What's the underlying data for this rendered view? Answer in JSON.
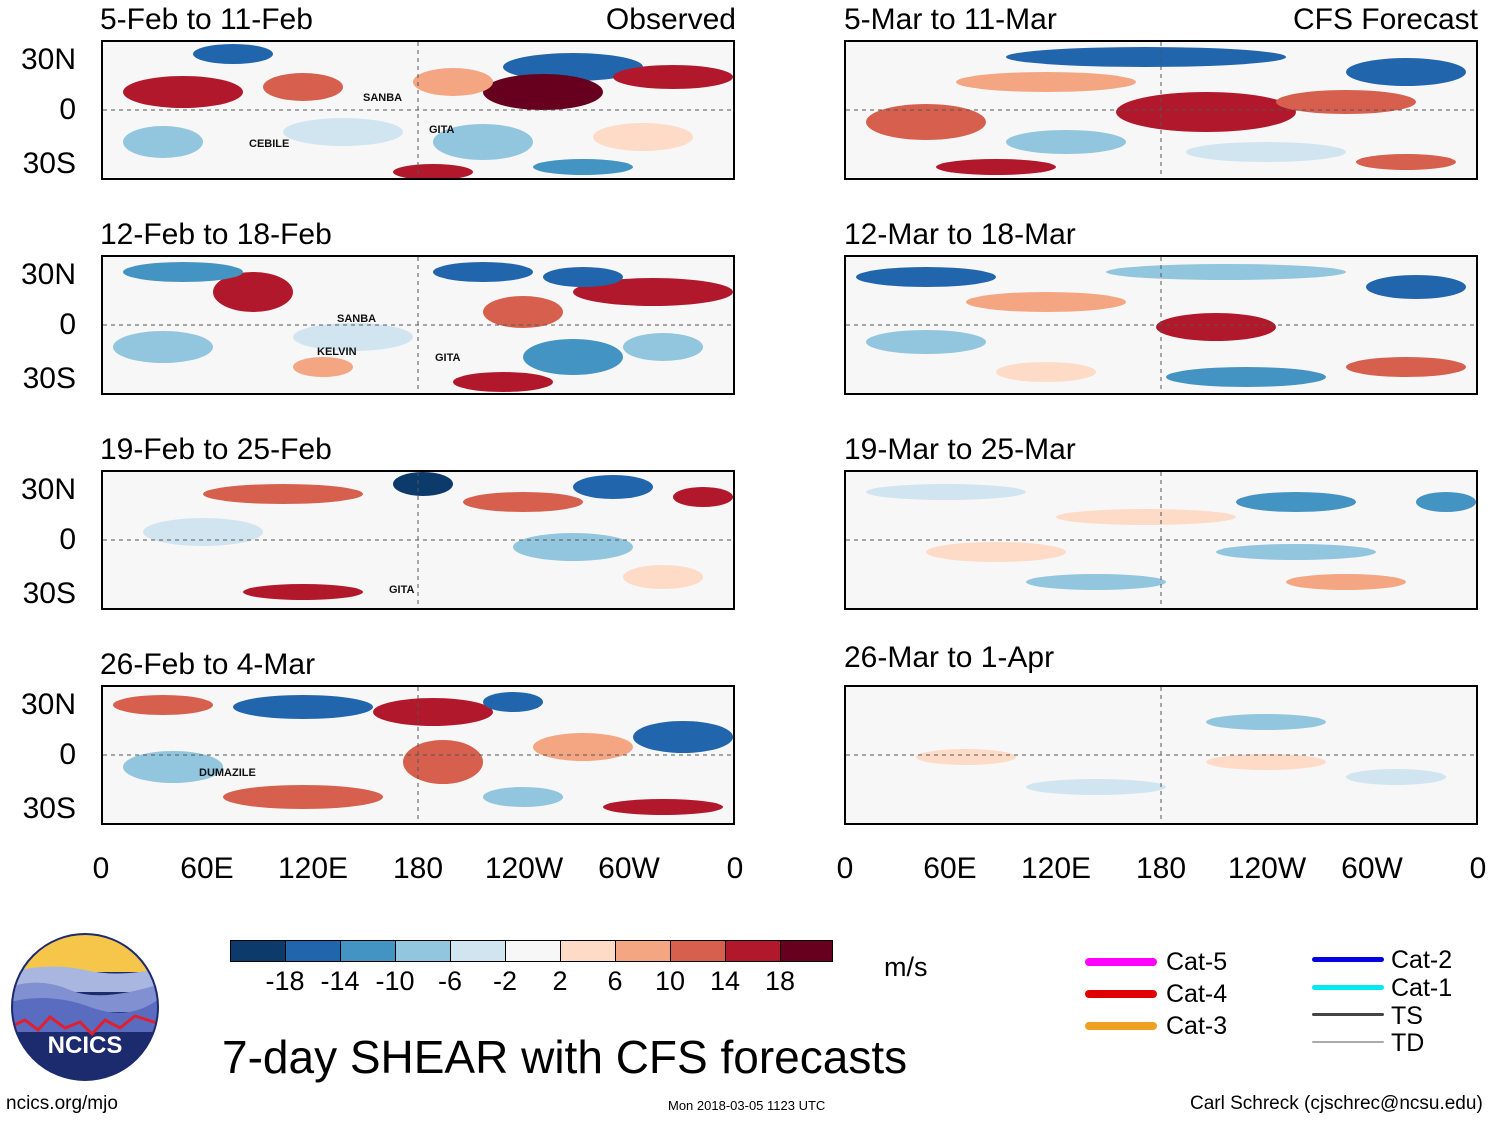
{
  "observed_label": "Observed",
  "forecast_label": "CFS Forecast",
  "latitude_ticks": [
    "30N",
    "0",
    "30S"
  ],
  "longitude_ticks": [
    "0",
    "60E",
    "120E",
    "180",
    "120W",
    "60W",
    "0"
  ],
  "observed_panels": [
    {
      "period": "5-Feb to 11-Feb",
      "storms": [
        "SANBA",
        "GITA",
        "CEBILE"
      ]
    },
    {
      "period": "12-Feb to 18-Feb",
      "storms": [
        "SANBA",
        "KELVIN",
        "GITA"
      ]
    },
    {
      "period": "19-Feb to 25-Feb",
      "storms": [
        "GITA"
      ]
    },
    {
      "period": "26-Feb to 4-Mar",
      "storms": [
        "DUMAZILE"
      ]
    }
  ],
  "forecast_panels": [
    {
      "period": "5-Mar to 11-Mar"
    },
    {
      "period": "12-Mar to 18-Mar"
    },
    {
      "period": "19-Mar to 25-Mar"
    },
    {
      "period": "26-Mar to 1-Apr"
    }
  ],
  "colorbar": {
    "ticks": [
      "-18",
      "-14",
      "-10",
      "-6",
      "-2",
      "2",
      "6",
      "10",
      "14",
      "18"
    ],
    "colors": [
      "#0b3a6b",
      "#2166ac",
      "#4393c3",
      "#92c5de",
      "#d1e5f0",
      "#f7f7f7",
      "#fddbc7",
      "#f4a582",
      "#d6604d",
      "#b2182b",
      "#67001f"
    ],
    "units": "m/s"
  },
  "legend": {
    "left": [
      {
        "label": "Cat-5",
        "color": "#ff00ff"
      },
      {
        "label": "Cat-4",
        "color": "#e00000"
      },
      {
        "label": "Cat-3",
        "color": "#f0a020"
      }
    ],
    "right": [
      {
        "label": "Cat-2",
        "color": "#0000e0"
      },
      {
        "label": "Cat-1",
        "color": "#00e8f0"
      },
      {
        "label": "TS",
        "color": "#444444"
      },
      {
        "label": "TD",
        "color": "#aaaaaa"
      }
    ]
  },
  "logo_text": "NCICS",
  "main_title": "7-day SHEAR with CFS forecasts",
  "footer": {
    "website": "ncics.org/mjo",
    "timestamp": "Mon 2018-03-05 1123 UTC",
    "credit": "Carl Schreck (cjschrec@ncsu.edu)"
  }
}
